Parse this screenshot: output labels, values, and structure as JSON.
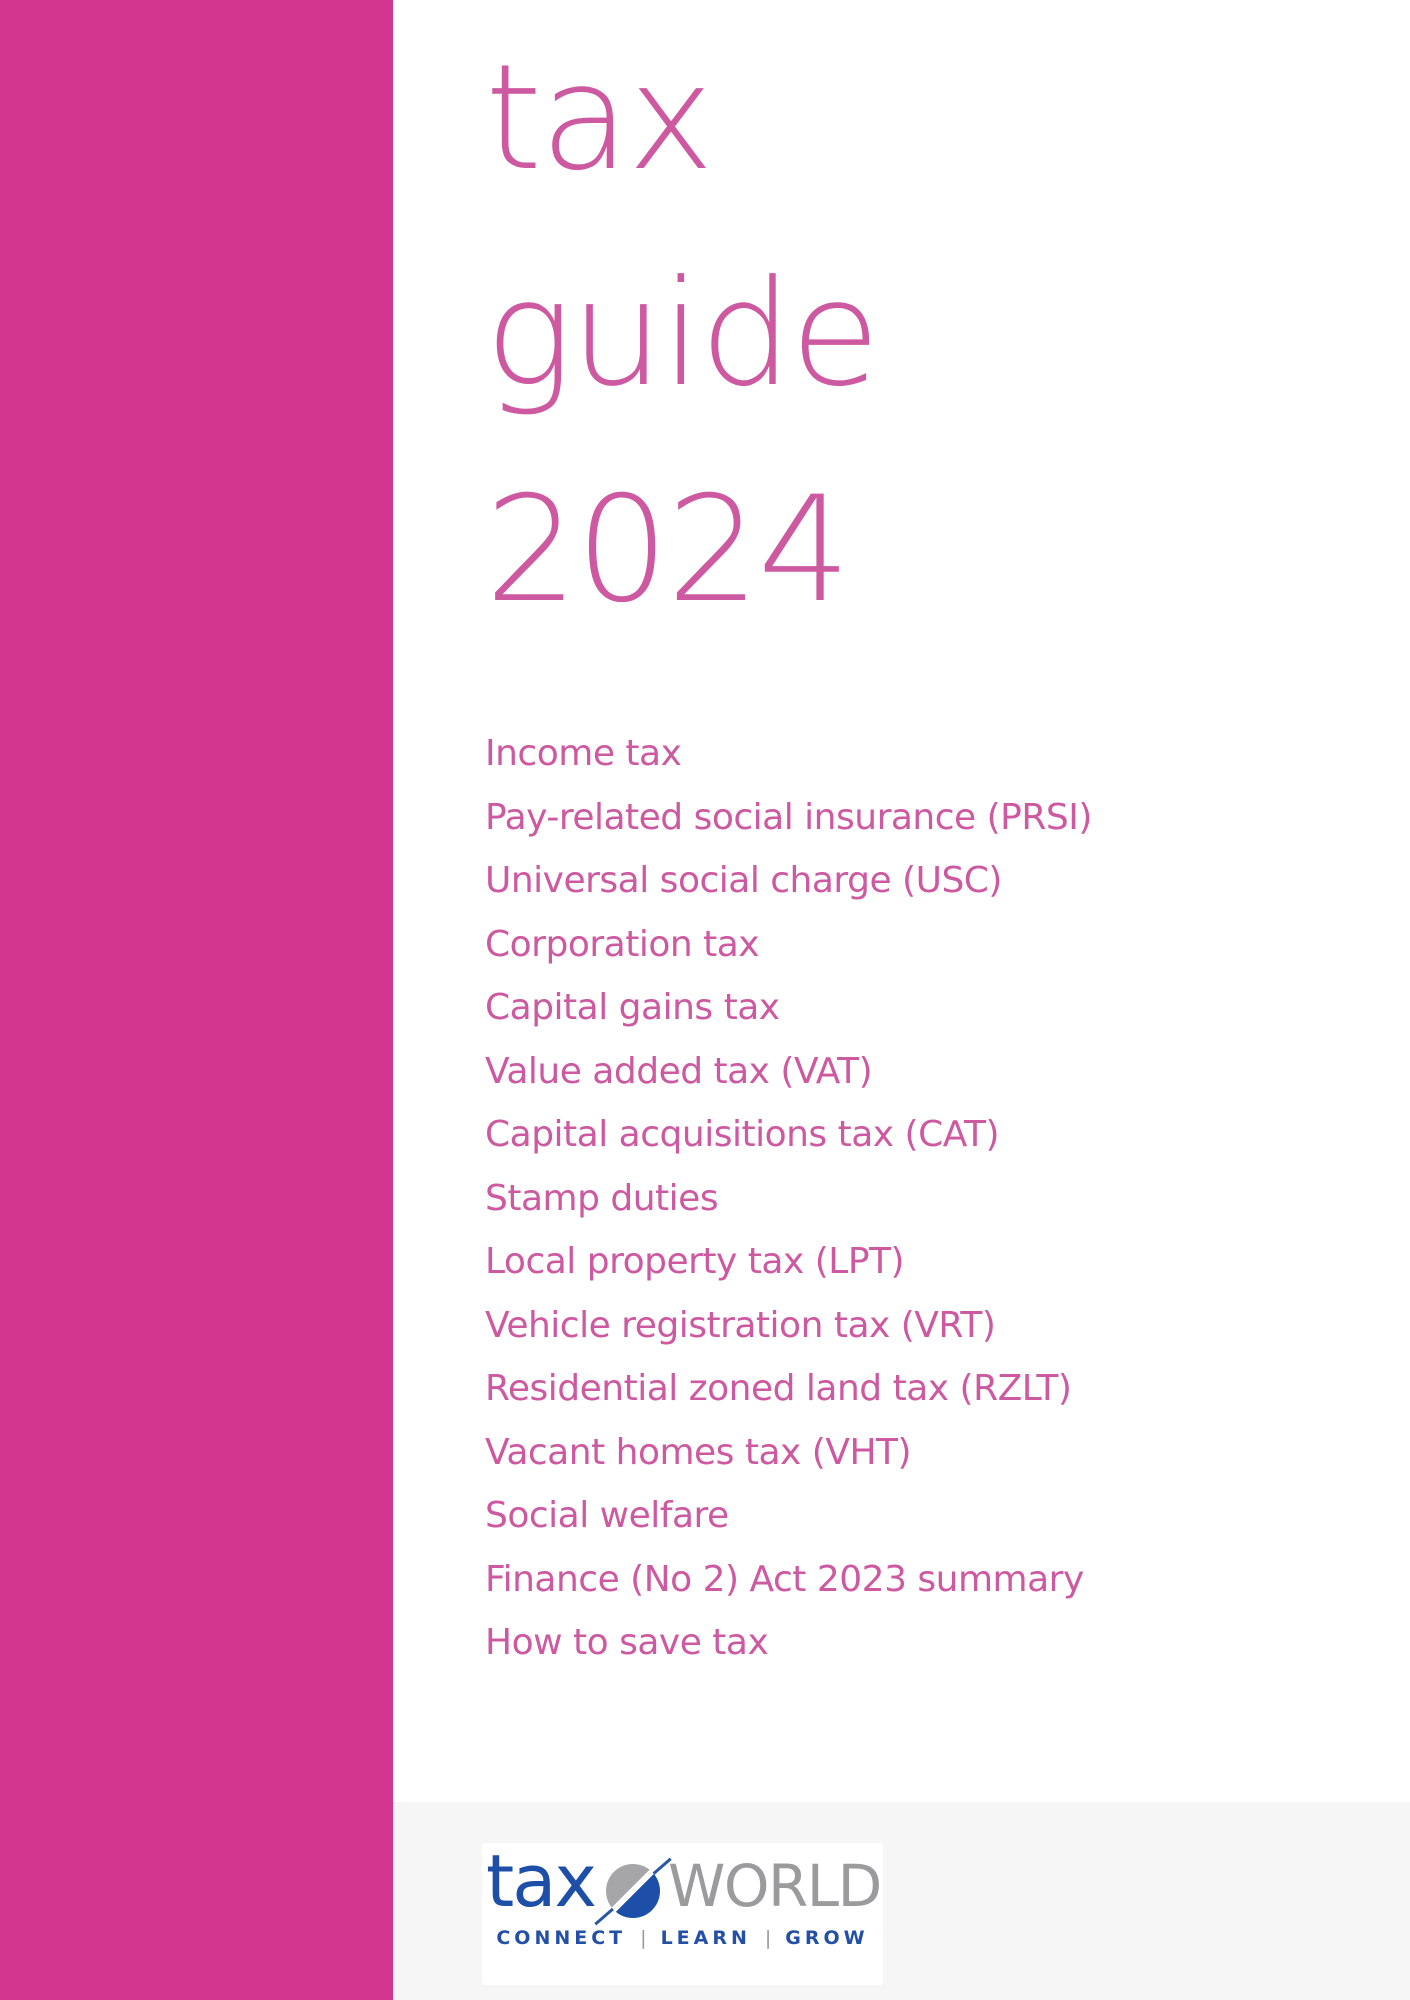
{
  "cover": {
    "title_lines": [
      "tax",
      "guide",
      "2024"
    ],
    "toc_items": [
      "Income tax",
      "Pay-related social insurance (PRSI)",
      "Universal social charge (USC)",
      "Corporation tax",
      "Capital gains tax",
      "Value added tax (VAT)",
      "Capital acquisitions tax (CAT)",
      "Stamp duties",
      "Local property tax (LPT)",
      "Vehicle registration tax (VRT)",
      "Residential zoned land tax (RZLT)",
      "Vacant homes tax (VHT)",
      "Social welfare",
      "Finance (No 2) Act 2023 summary",
      "How to save tax"
    ],
    "logo": {
      "brand_first": "tax",
      "brand_second": "WORLD",
      "tagline_words": [
        "CONNECT",
        "LEARN",
        "GROW"
      ],
      "tagline_separator": "|"
    },
    "colors": {
      "sidebar_pink": "#d2368f",
      "title_pink": "#cd59a0",
      "logo_blue": "#1d4fa8",
      "logo_gray": "#9b9b9d",
      "footer_bg": "#f6f6f7"
    }
  }
}
